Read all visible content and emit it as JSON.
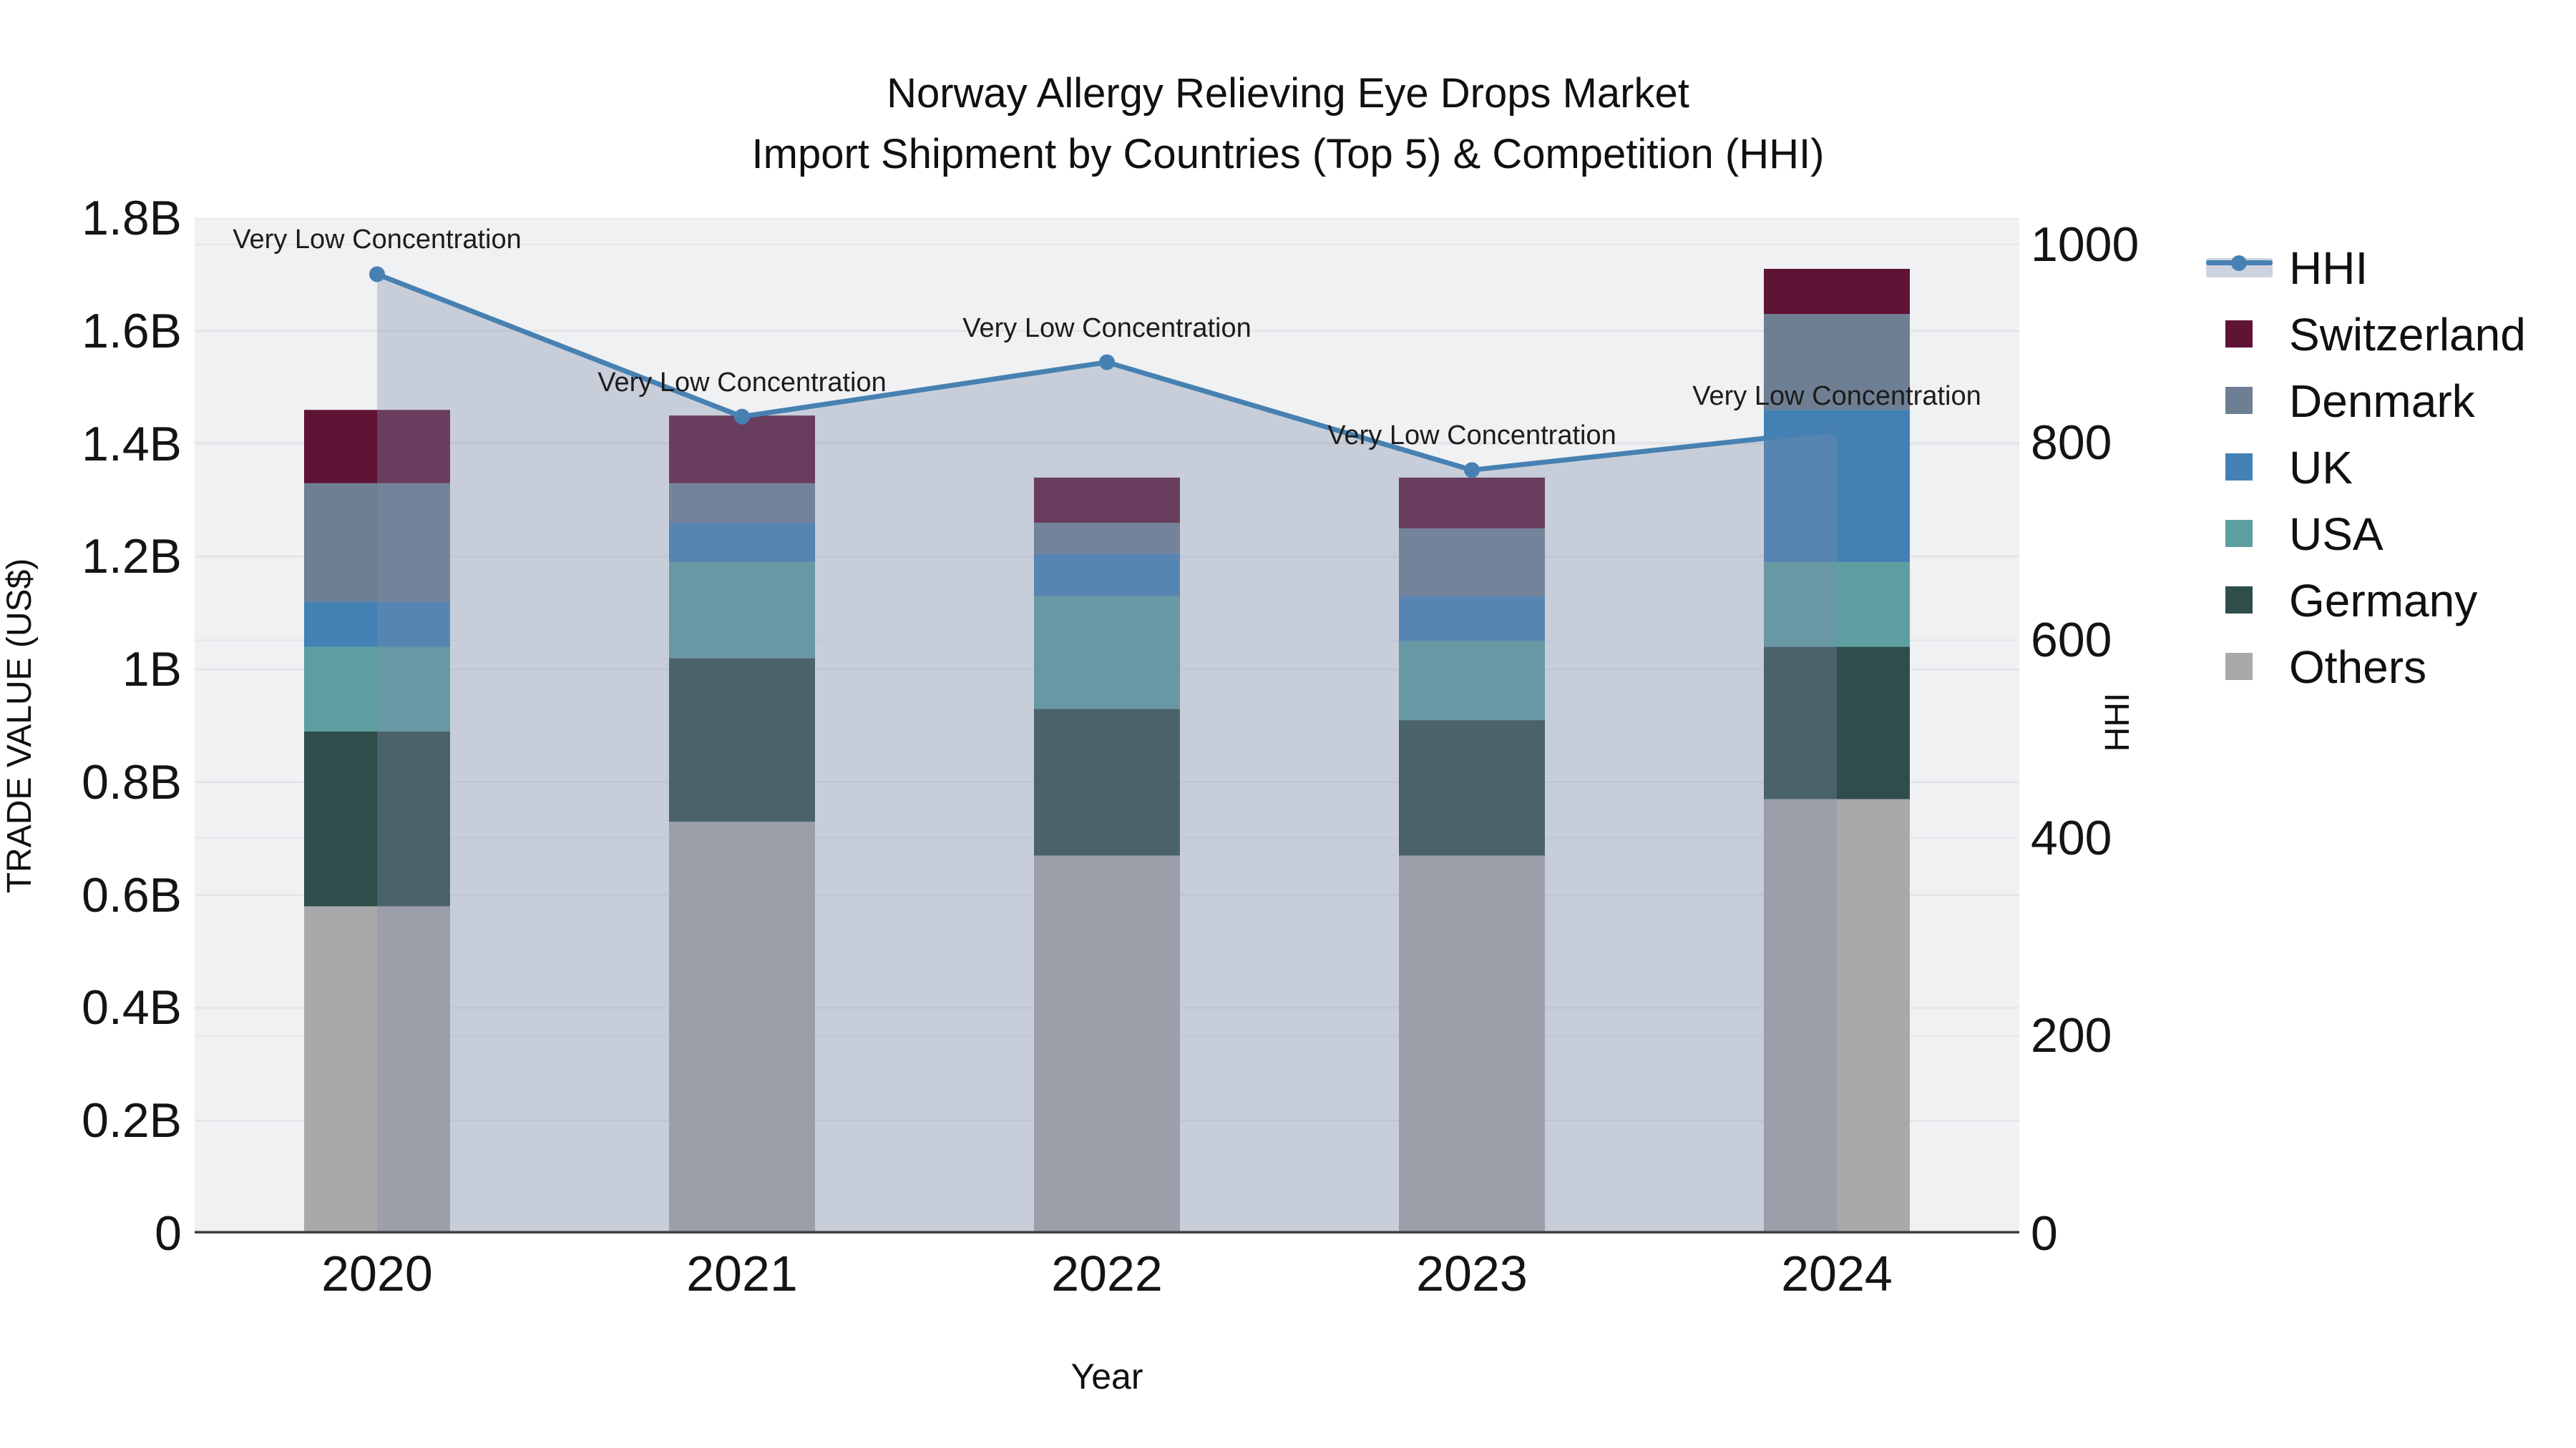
{
  "title": {
    "line1": "Norway Allergy Relieving Eye Drops Market",
    "line2": "Import Shipment by Countries (Top 5) & Competition (HHI)"
  },
  "axis_left": {
    "title": "TRADE VALUE (US$)",
    "ticks": [
      {
        "value": 0,
        "label": "0"
      },
      {
        "value": 0.2,
        "label": "0.2B"
      },
      {
        "value": 0.4,
        "label": "0.4B"
      },
      {
        "value": 0.6,
        "label": "0.6B"
      },
      {
        "value": 0.8,
        "label": "0.8B"
      },
      {
        "value": 1.0,
        "label": "1B"
      },
      {
        "value": 1.2,
        "label": "1.2B"
      },
      {
        "value": 1.4,
        "label": "1.4B"
      },
      {
        "value": 1.6,
        "label": "1.6B"
      },
      {
        "value": 1.8,
        "label": "1.8B"
      }
    ],
    "range": [
      0,
      1.8
    ],
    "units": "billions US$"
  },
  "axis_right": {
    "title": "HHI",
    "ticks": [
      {
        "value": 0,
        "label": "0"
      },
      {
        "value": 200,
        "label": "200"
      },
      {
        "value": 400,
        "label": "400"
      },
      {
        "value": 600,
        "label": "600"
      },
      {
        "value": 800,
        "label": "800"
      },
      {
        "value": 1000,
        "label": "1000"
      }
    ],
    "range": [
      0,
      1000
    ]
  },
  "axis_x": {
    "title": "Year",
    "categories": [
      "2020",
      "2021",
      "2022",
      "2023",
      "2024"
    ]
  },
  "legend": {
    "items": [
      {
        "label": "HHI",
        "type": "line",
        "color": "#4781b2",
        "band_color": "#ccd3df"
      },
      {
        "label": "Switzerland",
        "type": "square",
        "color": "#5f1335"
      },
      {
        "label": "Denmark",
        "type": "square",
        "color": "#6e7f93"
      },
      {
        "label": "UK",
        "type": "square",
        "color": "#4381b5"
      },
      {
        "label": "USA",
        "type": "square",
        "color": "#5d9fa0"
      },
      {
        "label": "Germany",
        "type": "square",
        "color": "#2e4d4b"
      },
      {
        "label": "Others",
        "type": "square",
        "color": "#a9a9ab"
      }
    ]
  },
  "colors": {
    "plot_bg": "#f0f1f3",
    "grid": "#e2e4e7",
    "axis_line": "#3f3f3f",
    "hhi_line": "#4781b2",
    "hhi_area_fill": "rgba(125,140,170,0.35)",
    "text": "#111111"
  },
  "chart_data": {
    "type": "bar+line",
    "title": "Norway Allergy Relieving Eye Drops Market — Import Shipment by Countries (Top 5) & Competition (HHI)",
    "categories": [
      "2020",
      "2021",
      "2022",
      "2023",
      "2024"
    ],
    "bar_units": "B (US$ billions)",
    "stack_order_bottom_to_top": [
      "Others",
      "Germany",
      "USA",
      "UK",
      "Denmark",
      "Switzerland"
    ],
    "series": [
      {
        "name": "Others",
        "color": "#a9a9ab",
        "values": [
          0.58,
          0.73,
          0.67,
          0.67,
          0.77
        ]
      },
      {
        "name": "Germany",
        "color": "#2e4d4b",
        "values": [
          0.31,
          0.29,
          0.26,
          0.24,
          0.27
        ]
      },
      {
        "name": "USA",
        "color": "#5d9fa0",
        "values": [
          0.15,
          0.17,
          0.2,
          0.14,
          0.15
        ]
      },
      {
        "name": "UK",
        "color": "#4381b5",
        "values": [
          0.08,
          0.07,
          0.075,
          0.08,
          0.27
        ]
      },
      {
        "name": "Denmark",
        "color": "#6e7f93",
        "values": [
          0.21,
          0.07,
          0.055,
          0.12,
          0.17
        ]
      },
      {
        "name": "Switzerland",
        "color": "#5f1335",
        "values": [
          0.13,
          0.12,
          0.08,
          0.09,
          0.08
        ]
      }
    ],
    "bar_totals": [
      1.46,
      1.45,
      1.34,
      1.34,
      1.71
    ],
    "line_series": {
      "name": "HHI",
      "axis": "right",
      "values": [
        970,
        826,
        881,
        772,
        812
      ],
      "area_fill_to_zero": true
    },
    "annotations": [
      {
        "category": "2020",
        "text": "Very Low Concentration"
      },
      {
        "category": "2021",
        "text": "Very Low Concentration"
      },
      {
        "category": "2022",
        "text": "Very Low Concentration"
      },
      {
        "category": "2023",
        "text": "Very Low Concentration"
      },
      {
        "category": "2024",
        "text": "Very Low Concentration"
      }
    ],
    "ylim_left": [
      0,
      1.8
    ],
    "ylim_right": [
      0,
      1000
    ],
    "grid": true,
    "legend_position": "right"
  }
}
